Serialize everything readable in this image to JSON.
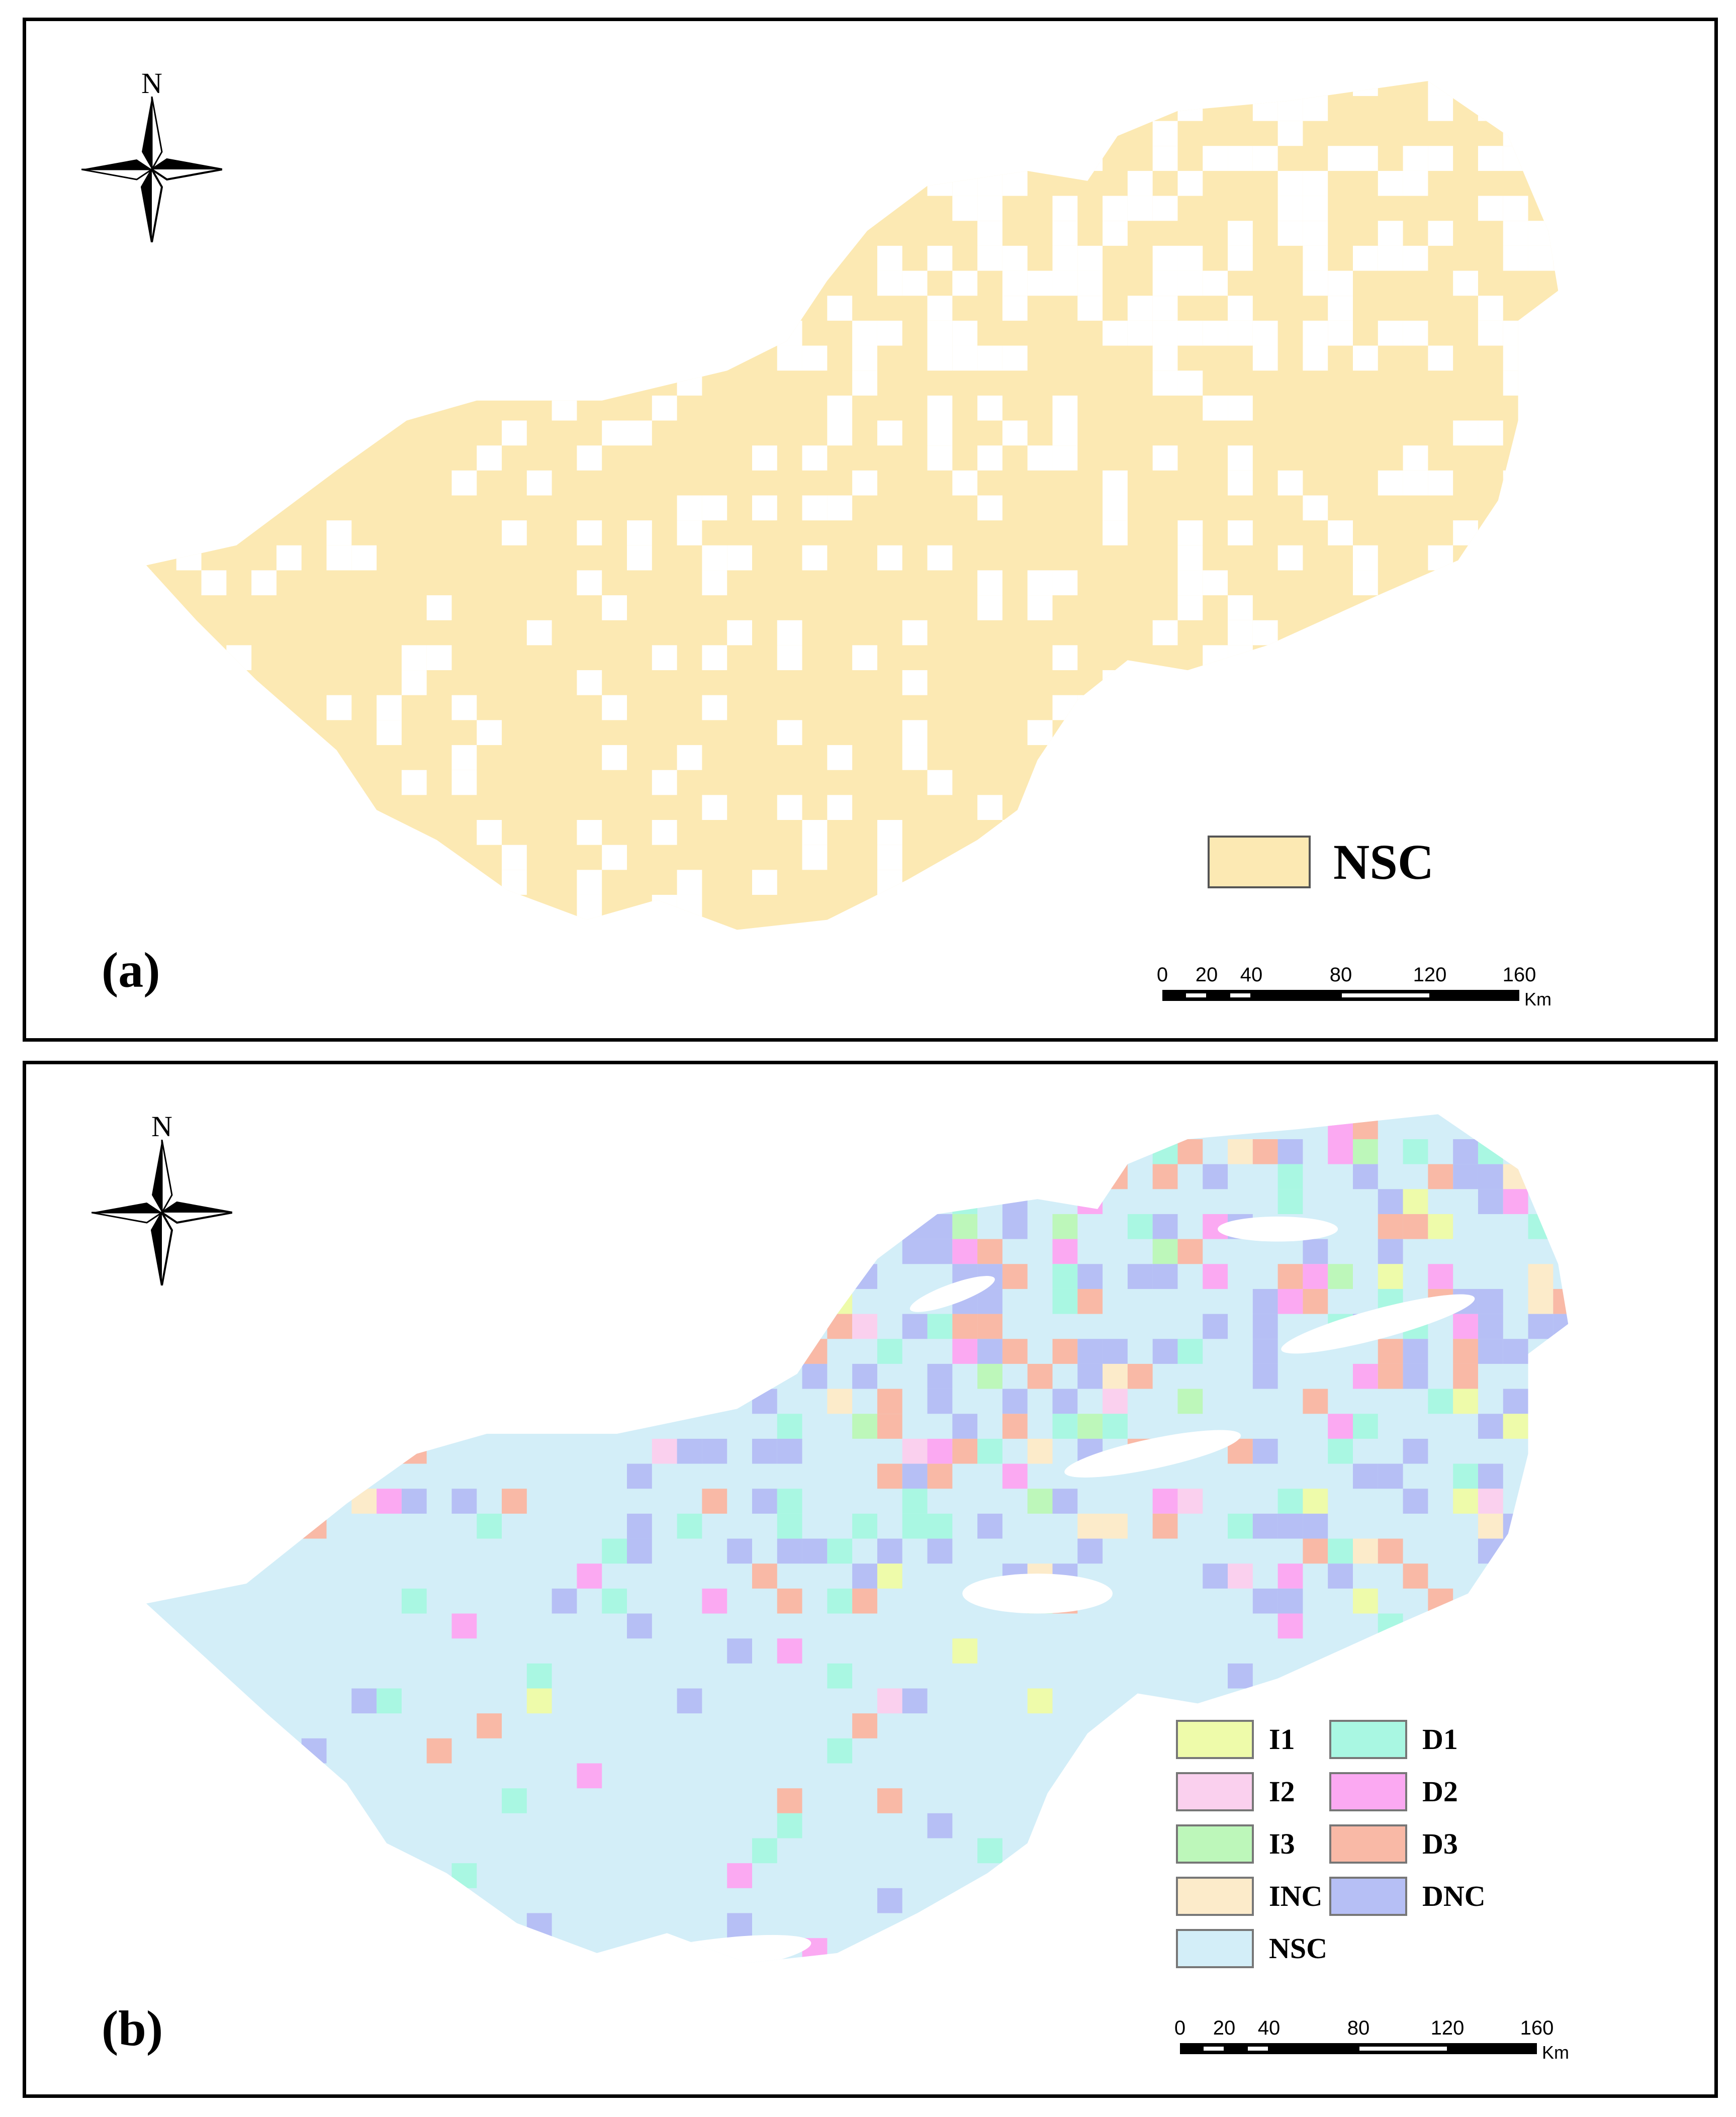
{
  "panels": [
    {
      "label": "(a)",
      "north_label": "N",
      "legend": [
        {
          "label": "NSC",
          "color": "#FCE9B3"
        }
      ],
      "scale": {
        "ticks": [
          "0",
          "20",
          "40",
          "80",
          "120",
          "160"
        ],
        "unit": "Km"
      }
    },
    {
      "label": "(b)",
      "north_label": "N",
      "legend": [
        {
          "label": "I1",
          "color": "#EEFBAA"
        },
        {
          "label": "D1",
          "color": "#A9F7E2"
        },
        {
          "label": "I2",
          "color": "#FAD0EE"
        },
        {
          "label": "D2",
          "color": "#FBA9F2"
        },
        {
          "label": "I3",
          "color": "#BDF7BA"
        },
        {
          "label": "D3",
          "color": "#F9B9A6"
        },
        {
          "label": "INC",
          "color": "#FCEBCA"
        },
        {
          "label": "DNC",
          "color": "#B6BFF5"
        },
        {
          "label": "NSC",
          "color": "#D3EEF8"
        }
      ],
      "scale": {
        "ticks": [
          "0",
          "20",
          "40",
          "80",
          "120",
          "160"
        ],
        "unit": "Km"
      }
    }
  ]
}
